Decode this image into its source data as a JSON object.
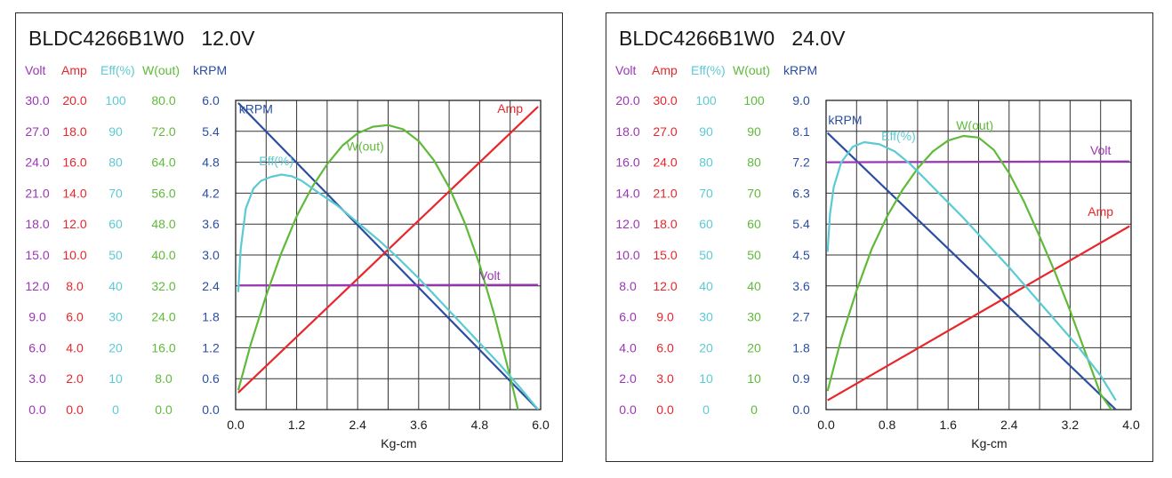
{
  "chart_data": [
    {
      "type": "line",
      "title": "BLDC4266B1W0   12.0V",
      "xlabel": "Kg-cm",
      "x_ticks": [
        "0.0",
        "1.2",
        "2.4",
        "3.6",
        "4.8",
        "6.0"
      ],
      "xlim": [
        0,
        6
      ],
      "axes": [
        {
          "name": "Volt",
          "color": "#9b36b5",
          "ticks": [
            "0.0",
            "3.0",
            "6.0",
            "9.0",
            "12.0",
            "15.0",
            "18.0",
            "21.0",
            "24.0",
            "27.0",
            "30.0"
          ]
        },
        {
          "name": "Amp",
          "color": "#e8262b",
          "ticks": [
            "0.0",
            "2.0",
            "4.0",
            "6.0",
            "8.0",
            "10.0",
            "12.0",
            "14.0",
            "16.0",
            "18.0",
            "20.0"
          ]
        },
        {
          "name": "Eff(%)",
          "color": "#5ccad3",
          "ticks": [
            "0",
            "10",
            "20",
            "30",
            "40",
            "50",
            "60",
            "70",
            "80",
            "90",
            "100"
          ]
        },
        {
          "name": "W(out)",
          "color": "#5fba3a",
          "ticks": [
            "0.0",
            "8.0",
            "16.0",
            "24.0",
            "32.0",
            "40.0",
            "48.0",
            "56.0",
            "64.0",
            "72.0",
            "80.0"
          ]
        },
        {
          "name": "kRPM",
          "color": "#2b4ea0",
          "ticks": [
            "0.0",
            "0.6",
            "1.2",
            "1.8",
            "2.4",
            "3.0",
            "3.6",
            "4.2",
            "4.8",
            "5.4",
            "6.0"
          ]
        }
      ],
      "series": [
        {
          "name": "kRPM",
          "color": "#2b4ea0",
          "label_x": 0.4,
          "label_y": 5.75,
          "x": [
            0.05,
            5.95
          ],
          "y": [
            5.95,
            0.0
          ]
        },
        {
          "name": "Amp",
          "color": "#e8262b",
          "label_x": 5.4,
          "label_y": 19.2,
          "x": [
            0.05,
            5.95
          ],
          "y": [
            1.1,
            19.6
          ]
        },
        {
          "name": "Volt",
          "color": "#9b36b5",
          "label_x": 5.0,
          "label_y": 12.6,
          "x": [
            0.05,
            5.95
          ],
          "y": [
            12.05,
            12.1
          ]
        },
        {
          "name": "W(out)",
          "color": "#5fba3a",
          "label_x": 2.55,
          "label_y": 67,
          "x": [
            0.05,
            0.3,
            0.6,
            0.9,
            1.2,
            1.5,
            1.8,
            2.1,
            2.4,
            2.7,
            3.0,
            3.3,
            3.6,
            3.9,
            4.2,
            4.5,
            4.8,
            5.1,
            5.4,
            5.7,
            5.95
          ],
          "y": [
            5,
            17,
            29.5,
            40.5,
            50,
            57.5,
            63.5,
            68.3,
            71.5,
            73.2,
            73.6,
            72.5,
            69.5,
            64.5,
            57.5,
            48.5,
            37.5,
            24,
            8.5,
            -8,
            -20
          ]
        },
        {
          "name": "Eff(%)",
          "color": "#5ccad3",
          "label_x": 0.8,
          "label_y": 79,
          "x": [
            0.05,
            0.1,
            0.2,
            0.35,
            0.5,
            0.7,
            0.9,
            1.1,
            1.3,
            1.6,
            2.0,
            2.4,
            2.8,
            3.2,
            3.6,
            4.0,
            4.4,
            4.8,
            5.2,
            5.6,
            5.95
          ],
          "y": [
            38,
            52,
            65,
            71.5,
            74,
            75.3,
            76,
            75.5,
            74,
            70.5,
            66,
            60.5,
            55,
            49,
            42.5,
            35.5,
            28.5,
            21.5,
            14.5,
            7,
            0
          ]
        }
      ]
    },
    {
      "type": "line",
      "title": "BLDC4266B1W0   24.0V",
      "xlabel": "Kg-cm",
      "x_ticks": [
        "0.0",
        "0.8",
        "1.6",
        "2.4",
        "3.2",
        "4.0"
      ],
      "xlim": [
        0,
        4
      ],
      "axes": [
        {
          "name": "Volt",
          "color": "#9b36b5",
          "ticks": [
            "0.0",
            "2.0",
            "4.0",
            "6.0",
            "8.0",
            "10.0",
            "12.0",
            "14.0",
            "16.0",
            "18.0",
            "20.0"
          ]
        },
        {
          "name": "Amp",
          "color": "#e8262b",
          "ticks": [
            "0.0",
            "3.0",
            "6.0",
            "9.0",
            "12.0",
            "15.0",
            "18.0",
            "21.0",
            "24.0",
            "27.0",
            "30.0"
          ]
        },
        {
          "name": "Eff(%)",
          "color": "#5ccad3",
          "ticks": [
            "0",
            "10",
            "20",
            "30",
            "40",
            "50",
            "60",
            "70",
            "80",
            "90",
            "100"
          ]
        },
        {
          "name": "W(out)",
          "color": "#5fba3a",
          "ticks": [
            "0",
            "10",
            "20",
            "30",
            "40",
            "50",
            "60",
            "70",
            "80",
            "90",
            "100"
          ]
        },
        {
          "name": "kRPM",
          "color": "#2b4ea0",
          "ticks": [
            "0.0",
            "0.9",
            "1.8",
            "2.7",
            "3.6",
            "4.5",
            "5.4",
            "6.3",
            "7.2",
            "8.1",
            "9.0"
          ]
        }
      ],
      "series": [
        {
          "name": "kRPM",
          "color": "#2b4ea0",
          "label_x": 0.25,
          "label_y": 8.3,
          "x": [
            0.02,
            3.8
          ],
          "y": [
            8.05,
            0.0
          ]
        },
        {
          "name": "Amp",
          "color": "#e8262b",
          "label_x": 3.6,
          "label_y": 18.8,
          "x": [
            0.02,
            3.98
          ],
          "y": [
            0.9,
            17.8
          ]
        },
        {
          "name": "Volt",
          "color": "#9b36b5",
          "label_x": 3.6,
          "label_y": 16.5,
          "x": [
            0.02,
            3.98
          ],
          "y": [
            16.0,
            16.05
          ]
        },
        {
          "name": "W(out)",
          "color": "#5fba3a",
          "label_x": 1.95,
          "label_y": 90.5,
          "x": [
            0.02,
            0.2,
            0.4,
            0.6,
            0.8,
            1.0,
            1.2,
            1.4,
            1.6,
            1.8,
            2.0,
            2.2,
            2.4,
            2.6,
            2.8,
            3.0,
            3.2,
            3.4,
            3.6,
            3.8
          ],
          "y": [
            6,
            23,
            38.5,
            52,
            62.5,
            71,
            78,
            83.5,
            87,
            88.5,
            88,
            84,
            76.5,
            67,
            56,
            44.5,
            32,
            18.5,
            5,
            -2
          ]
        },
        {
          "name": "Eff(%)",
          "color": "#5ccad3",
          "label_x": 0.95,
          "label_y": 87,
          "x": [
            0.02,
            0.05,
            0.1,
            0.2,
            0.35,
            0.5,
            0.7,
            0.9,
            1.1,
            1.3,
            1.5,
            1.8,
            2.1,
            2.4,
            2.7,
            3.0,
            3.3,
            3.6,
            3.8
          ],
          "y": [
            51,
            63,
            72,
            80,
            85,
            86.5,
            85.8,
            83.5,
            79.5,
            74.5,
            69.5,
            62,
            54,
            46,
            37.5,
            29,
            20.5,
            11,
            3
          ]
        }
      ]
    }
  ]
}
